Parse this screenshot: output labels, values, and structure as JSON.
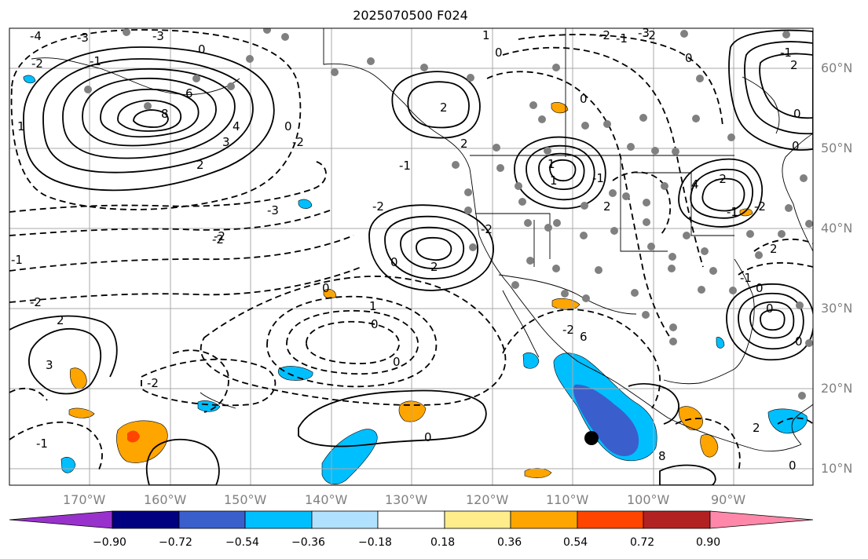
{
  "title": "2025070500 F024",
  "map": {
    "lat_labels": [
      "60°N",
      "50°N",
      "40°N",
      "30°N",
      "20°N",
      "10°N"
    ],
    "lon_labels": [
      "170°W",
      "160°W",
      "150°W",
      "140°W",
      "130°W",
      "120°W",
      "110°W",
      "100°W",
      "90°W"
    ],
    "grid_color": "#a9a9a9",
    "contour_labels": [
      "-4",
      "-3",
      "-3",
      "-2",
      "-1",
      "0",
      "1",
      "2",
      "3",
      "4",
      "6",
      "8",
      "-3",
      "-2",
      "-1",
      "-2",
      "2",
      "2",
      "0",
      "1",
      "-2",
      "-1",
      "-2",
      "0",
      "0",
      "1",
      "-1",
      "-2",
      "0",
      "2",
      "2",
      "-2",
      "2",
      "3",
      "-2",
      "1",
      "0",
      "0",
      "0",
      "-1",
      "6",
      "8",
      "2",
      "0",
      "-1",
      "2",
      "0",
      "0",
      "-2",
      "-1",
      "2",
      "-1",
      "0",
      "0",
      "4",
      "-3",
      "-2",
      "-2",
      "1",
      "-2",
      "0",
      "-1",
      "0",
      "-2",
      "0"
    ]
  },
  "colorbar": {
    "labels": [
      "−0.90",
      "−0.72",
      "−0.54",
      "−0.36",
      "−0.18",
      "0.18",
      "0.36",
      "0.54",
      "0.72",
      "0.90"
    ],
    "colors": [
      "#9932cc",
      "#000080",
      "#3a5fcd",
      "#00bfff",
      "#b0e2ff",
      "#ffffff",
      "#ffec8b",
      "#ffa500",
      "#ff4500",
      "#b22222",
      "#ff88aa"
    ]
  }
}
